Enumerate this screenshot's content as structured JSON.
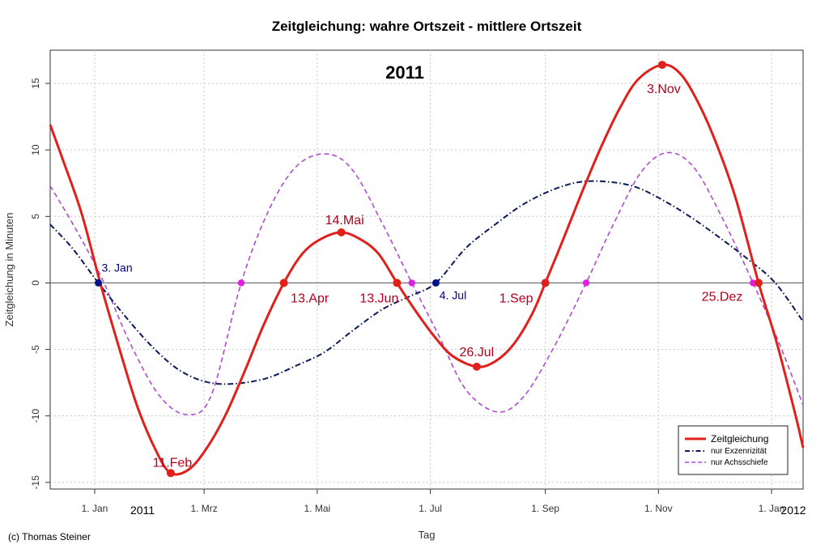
{
  "chart_data": {
    "type": "line",
    "title": "Zeitgleichung: wahre Ortszeit - mittlere Ortszeit",
    "year_label": "2011",
    "xlabel": "Tag",
    "ylabel": "Zeitgleichung in Minuten",
    "x_range": [
      "2010-12-08",
      "2012-01-18"
    ],
    "ylim": [
      -15.5,
      17.5
    ],
    "y_ticks": [
      -15,
      -10,
      -5,
      0,
      5,
      10,
      15
    ],
    "x_ticks": [
      {
        "date": "2011-01-01",
        "label": "1. Jan"
      },
      {
        "date": "2011-03-01",
        "label": "1. Mrz"
      },
      {
        "date": "2011-05-01",
        "label": "1. Mai"
      },
      {
        "date": "2011-07-01",
        "label": "1. Jul"
      },
      {
        "date": "2011-09-01",
        "label": "1. Sep"
      },
      {
        "date": "2011-11-01",
        "label": "1. Nov"
      },
      {
        "date": "2012-01-01",
        "label": "1. Jan"
      }
    ],
    "year_ticks": [
      "2011",
      "2012"
    ],
    "grid": true,
    "legend_position": "bottom-right",
    "series": [
      {
        "name": "Zeitgleichung",
        "color": "#e0201b",
        "style": "solid",
        "x": [
          "2010-12-08",
          "2010-12-15",
          "2010-12-25",
          "2011-01-04",
          "2011-01-14",
          "2011-01-24",
          "2011-02-03",
          "2011-02-11",
          "2011-02-21",
          "2011-03-03",
          "2011-03-13",
          "2011-03-23",
          "2011-04-02",
          "2011-04-13",
          "2011-04-23",
          "2011-05-03",
          "2011-05-14",
          "2011-05-24",
          "2011-06-03",
          "2011-06-13",
          "2011-06-23",
          "2011-07-03",
          "2011-07-13",
          "2011-07-26",
          "2011-08-05",
          "2011-08-15",
          "2011-08-25",
          "2011-09-01",
          "2011-09-11",
          "2011-09-21",
          "2011-10-01",
          "2011-10-11",
          "2011-10-21",
          "2011-11-03",
          "2011-11-13",
          "2011-11-23",
          "2011-12-03",
          "2011-12-13",
          "2011-12-25",
          "2012-01-04",
          "2012-01-14",
          "2012-01-18"
        ],
        "y": [
          11.9,
          9.2,
          5.2,
          0.0,
          -4.8,
          -9.3,
          -12.6,
          -14.3,
          -14.0,
          -12.3,
          -9.8,
          -6.6,
          -3.2,
          0.0,
          2.2,
          3.3,
          3.8,
          3.3,
          2.2,
          0.0,
          -2.1,
          -4.0,
          -5.5,
          -6.3,
          -5.9,
          -4.6,
          -2.3,
          0.0,
          3.4,
          6.9,
          10.2,
          13.1,
          15.3,
          16.4,
          15.7,
          13.4,
          10.2,
          6.2,
          0.0,
          -4.6,
          -10.0,
          -12.4
        ]
      },
      {
        "name": "nur Exzenrizität",
        "color": "#0a1a5a",
        "style": "dashdot",
        "x": [
          "2010-12-08",
          "2010-12-20",
          "2011-01-03",
          "2011-01-18",
          "2011-02-01",
          "2011-02-15",
          "2011-03-01",
          "2011-03-15",
          "2011-04-03",
          "2011-04-20",
          "2011-05-05",
          "2011-05-20",
          "2011-06-05",
          "2011-06-20",
          "2011-07-04",
          "2011-07-20",
          "2011-08-05",
          "2011-08-20",
          "2011-09-05",
          "2011-09-20",
          "2011-10-05",
          "2011-10-20",
          "2011-11-05",
          "2011-11-20",
          "2011-12-05",
          "2011-12-20",
          "2012-01-03",
          "2012-01-18"
        ],
        "y": [
          4.4,
          2.6,
          0.0,
          -2.6,
          -4.8,
          -6.5,
          -7.4,
          -7.6,
          -7.2,
          -6.2,
          -5.2,
          -3.6,
          -2.0,
          -1.0,
          0.0,
          2.6,
          4.4,
          5.9,
          7.0,
          7.6,
          7.6,
          7.2,
          6.1,
          4.8,
          3.3,
          1.7,
          0.0,
          -2.9
        ]
      },
      {
        "name": "nur Achsschiefe",
        "color": "#b04ad0",
        "style": "dashed",
        "x": [
          "2010-12-08",
          "2010-12-22",
          "2011-01-05",
          "2011-01-20",
          "2011-02-05",
          "2011-02-20",
          "2011-03-05",
          "2011-03-21",
          "2011-04-05",
          "2011-04-20",
          "2011-05-06",
          "2011-05-20",
          "2011-06-05",
          "2011-06-21",
          "2011-07-05",
          "2011-07-20",
          "2011-08-06",
          "2011-08-20",
          "2011-09-05",
          "2011-09-23",
          "2011-10-08",
          "2011-10-23",
          "2011-11-06",
          "2011-11-20",
          "2011-12-05",
          "2011-12-22",
          "2012-01-05",
          "2012-01-18"
        ],
        "y": [
          7.3,
          4.0,
          0.3,
          -4.5,
          -8.5,
          -9.9,
          -8.4,
          0.0,
          5.5,
          8.8,
          9.7,
          8.5,
          4.5,
          0.0,
          -3.8,
          -8.0,
          -9.7,
          -8.6,
          -5.0,
          0.0,
          4.5,
          8.4,
          9.8,
          8.7,
          5.0,
          0.0,
          -4.5,
          -9.2
        ]
      }
    ],
    "annotations": [
      {
        "date": "2011-02-11",
        "y": -14.3,
        "label": "11.Feb",
        "kind": "red"
      },
      {
        "date": "2011-04-13",
        "y": 0.0,
        "label": "13.Apr",
        "kind": "red"
      },
      {
        "date": "2011-05-14",
        "y": 3.8,
        "label": "14.Mai",
        "kind": "red"
      },
      {
        "date": "2011-06-13",
        "y": 0.0,
        "label": "13.Jun",
        "kind": "red"
      },
      {
        "date": "2011-07-26",
        "y": -6.3,
        "label": "26.Jul",
        "kind": "red"
      },
      {
        "date": "2011-09-01",
        "y": 0.0,
        "label": "1.Sep",
        "kind": "red"
      },
      {
        "date": "2011-11-03",
        "y": 16.4,
        "label": "3.Nov",
        "kind": "red"
      },
      {
        "date": "2011-12-25",
        "y": 0.0,
        "label": "25.Dez",
        "kind": "red"
      },
      {
        "date": "2011-01-03",
        "y": 0.0,
        "label": "3. Jan",
        "kind": "blue"
      },
      {
        "date": "2011-07-04",
        "y": 0.0,
        "label": "4. Jul",
        "kind": "blue"
      }
    ],
    "magenta_points": [
      "2011-03-21",
      "2011-06-21",
      "2011-09-23",
      "2011-12-22"
    ]
  },
  "copyright": "(c) Thomas Steiner"
}
